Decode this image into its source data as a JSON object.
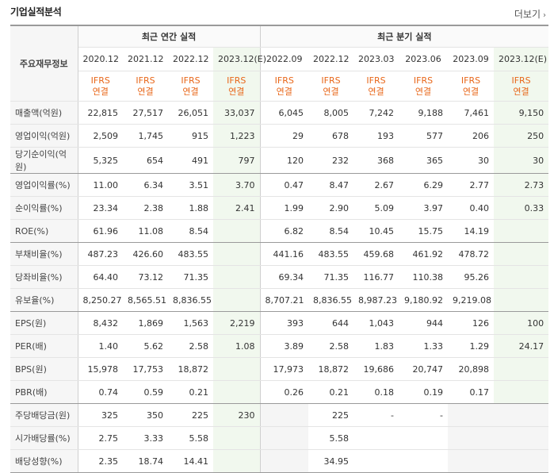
{
  "header": {
    "title": "기업실적분석",
    "more_label": "더보기"
  },
  "table": {
    "side_header": "주요재무정보",
    "group_annual": "최근 연간 실적",
    "group_quarter": "최근 분기 실적",
    "periods": [
      "2020.12",
      "2021.12",
      "2022.12",
      "2023.12(E)",
      "2022.09",
      "2022.12",
      "2023.03",
      "2023.06",
      "2023.09",
      "2023.12(E)"
    ],
    "ifrs": [
      "IFRS",
      "IFRS",
      "IFRS",
      "IFRS",
      "IFRS",
      "IFRS",
      "IFRS",
      "IFRS",
      "IFRS",
      "IFRS"
    ],
    "consol": [
      "연결",
      "연결",
      "연결",
      "연결",
      "연결",
      "연결",
      "연결",
      "연결",
      "연결",
      "연결"
    ],
    "rows": [
      {
        "label": "매출액(억원)",
        "values": [
          "22,815",
          "27,517",
          "26,051",
          "33,037",
          "6,045",
          "8,005",
          "7,242",
          "9,188",
          "7,461",
          "9,150"
        ]
      },
      {
        "label": "영업이익(억원)",
        "values": [
          "2,509",
          "1,745",
          "915",
          "1,223",
          "29",
          "678",
          "193",
          "577",
          "206",
          "250"
        ]
      },
      {
        "label": "당기순이익(억원)",
        "values": [
          "5,325",
          "654",
          "491",
          "797",
          "120",
          "232",
          "368",
          "365",
          "30",
          "30"
        ]
      },
      {
        "label": "영업이익률(%)",
        "values": [
          "11.00",
          "6.34",
          "3.51",
          "3.70",
          "0.47",
          "8.47",
          "2.67",
          "6.29",
          "2.77",
          "2.73"
        ]
      },
      {
        "label": "순이익률(%)",
        "values": [
          "23.34",
          "2.38",
          "1.88",
          "2.41",
          "1.99",
          "2.90",
          "5.09",
          "3.97",
          "0.40",
          "0.33"
        ]
      },
      {
        "label": "ROE(%)",
        "values": [
          "61.96",
          "11.08",
          "8.54",
          "",
          "6.82",
          "8.54",
          "10.45",
          "15.75",
          "14.19",
          ""
        ]
      },
      {
        "label": "부채비율(%)",
        "values": [
          "487.23",
          "426.60",
          "483.55",
          "",
          "441.16",
          "483.55",
          "459.68",
          "461.92",
          "478.72",
          ""
        ]
      },
      {
        "label": "당좌비율(%)",
        "values": [
          "64.40",
          "73.12",
          "71.35",
          "",
          "69.34",
          "71.35",
          "116.77",
          "110.38",
          "95.26",
          ""
        ]
      },
      {
        "label": "유보율(%)",
        "values": [
          "8,250.27",
          "8,565.51",
          "8,836.55",
          "",
          "8,707.21",
          "8,836.55",
          "8,987.23",
          "9,180.92",
          "9,219.08",
          ""
        ]
      },
      {
        "label": "EPS(원)",
        "values": [
          "8,432",
          "1,869",
          "1,563",
          "2,219",
          "393",
          "644",
          "1,043",
          "944",
          "126",
          "100"
        ]
      },
      {
        "label": "PER(배)",
        "values": [
          "1.40",
          "5.62",
          "2.58",
          "1.08",
          "3.89",
          "2.58",
          "1.83",
          "1.33",
          "1.29",
          "24.17"
        ]
      },
      {
        "label": "BPS(원)",
        "values": [
          "15,978",
          "17,753",
          "18,872",
          "",
          "17,973",
          "18,872",
          "19,686",
          "20,747",
          "20,898",
          ""
        ]
      },
      {
        "label": "PBR(배)",
        "values": [
          "0.74",
          "0.59",
          "0.21",
          "",
          "0.26",
          "0.21",
          "0.18",
          "0.19",
          "0.17",
          ""
        ]
      },
      {
        "label": "주당배당금(원)",
        "values": [
          "325",
          "350",
          "225",
          "230",
          "",
          "225",
          "-",
          "-",
          "",
          ""
        ]
      },
      {
        "label": "시가배당률(%)",
        "values": [
          "2.75",
          "3.33",
          "5.58",
          "",
          "",
          "5.58",
          "",
          "",
          "",
          ""
        ]
      },
      {
        "label": "배당성향(%)",
        "values": [
          "2.35",
          "18.74",
          "14.41",
          "",
          "",
          "34.95",
          "",
          "",
          "",
          ""
        ]
      }
    ]
  }
}
